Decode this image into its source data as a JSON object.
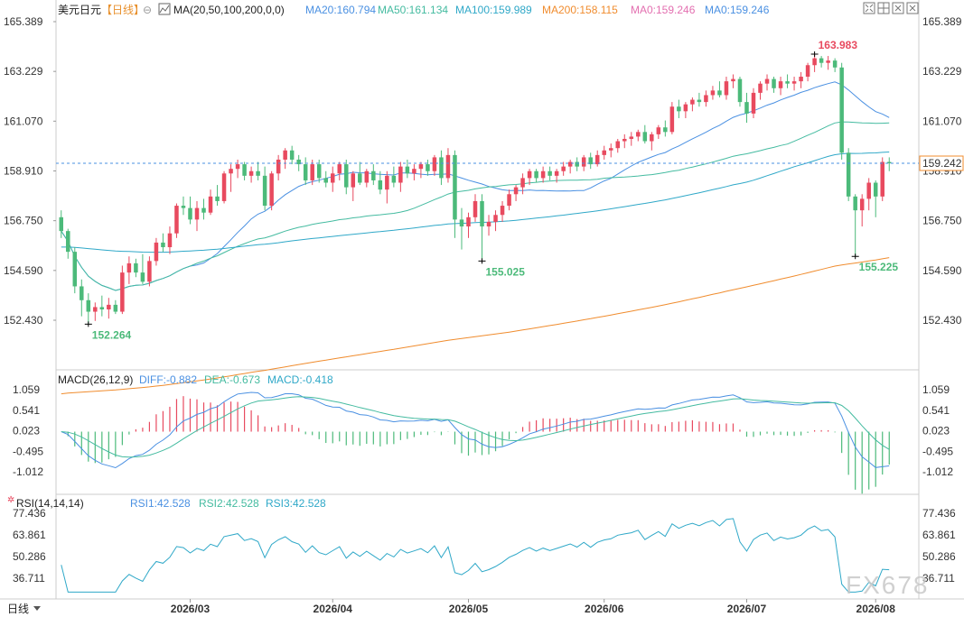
{
  "header": {
    "symbol": "美元日元",
    "period": "【日线】",
    "ma_label": "MA(20,50,100,200,0,0)",
    "ma_values": [
      {
        "text": "MA20:160.794",
        "color": "#4a90e2"
      },
      {
        "text": "MA50:161.134",
        "color": "#44bba0"
      },
      {
        "text": "MA100:159.989",
        "color": "#2fa8c8"
      },
      {
        "text": "MA200:158.115",
        "color": "#f08c2e"
      },
      {
        "text": "MA0:159.246",
        "color": "#e36fb0"
      },
      {
        "text": "MA0:159.246",
        "color": "#4a90e2"
      }
    ]
  },
  "toolbar": [
    "fit-icon",
    "grid-icon",
    "expand-icon",
    "close-icon"
  ],
  "price_axis": {
    "ticks": [
      "165.389",
      "163.229",
      "161.070",
      "158.910",
      "156.750",
      "154.590",
      "152.430"
    ],
    "current": "159.242"
  },
  "annotations": {
    "high": "163.983",
    "low1": "152.264",
    "low2": "155.025",
    "low3": "155.225"
  },
  "macd": {
    "label": "MACD(26,12,9)",
    "diff": "DIFF:-0.882",
    "dea": "DEA:-0.673",
    "macd": "MACD:-0.418",
    "ticks": [
      "1.059",
      "0.541",
      "0.023",
      "-0.495",
      "-1.012"
    ]
  },
  "rsi": {
    "label": "RSI(14,14,14)",
    "rsi1": "RSI1:42.528",
    "rsi2": "RSI2:42.528",
    "rsi3": "RSI3:42.528",
    "ticks": [
      "77.436",
      "63.861",
      "50.286",
      "36.711"
    ]
  },
  "x_axis": {
    "months": [
      "2026/03",
      "2026/04",
      "2026/05",
      "2026/06",
      "2026/07",
      "2026/08"
    ],
    "period_button": "日线"
  },
  "watermark": "FX678",
  "colors": {
    "up": "#e84a5f",
    "down": "#4cba7a",
    "ma20": "#4a90e2",
    "ma50": "#44bba0",
    "ma100": "#2fa8c8",
    "ma200": "#f08c2e",
    "current_price": "#f08c2e"
  },
  "chart_data": {
    "type": "candlestick",
    "price_range": [
      151.4,
      165.8
    ],
    "candles": [
      [
        156.9,
        157.2,
        156.0,
        156.3
      ],
      [
        156.3,
        156.4,
        155.1,
        155.4
      ],
      [
        155.4,
        155.6,
        153.6,
        153.9
      ],
      [
        153.9,
        154.2,
        152.6,
        153.3
      ],
      [
        153.3,
        153.6,
        152.26,
        152.8
      ],
      [
        152.8,
        153.2,
        152.4,
        153.0
      ],
      [
        153.0,
        153.5,
        152.6,
        152.9
      ],
      [
        152.9,
        153.4,
        152.5,
        153.1
      ],
      [
        153.1,
        153.3,
        152.7,
        152.8
      ],
      [
        152.8,
        154.8,
        152.7,
        154.5
      ],
      [
        154.5,
        155.2,
        154.0,
        154.9
      ],
      [
        154.9,
        155.1,
        154.3,
        154.5
      ],
      [
        154.5,
        155.3,
        154.0,
        154.1
      ],
      [
        154.1,
        155.2,
        153.9,
        155.0
      ],
      [
        155.0,
        156.0,
        154.8,
        155.8
      ],
      [
        155.8,
        156.2,
        155.4,
        155.6
      ],
      [
        155.6,
        156.5,
        155.3,
        156.2
      ],
      [
        156.2,
        157.5,
        156.0,
        157.4
      ],
      [
        157.4,
        157.8,
        157.0,
        157.3
      ],
      [
        157.3,
        157.8,
        156.6,
        156.8
      ],
      [
        156.8,
        157.6,
        156.3,
        157.3
      ],
      [
        157.3,
        157.7,
        156.8,
        157.1
      ],
      [
        157.1,
        158.1,
        157.0,
        157.8
      ],
      [
        157.8,
        158.3,
        157.4,
        157.6
      ],
      [
        157.6,
        158.9,
        157.5,
        158.8
      ],
      [
        158.8,
        159.2,
        158.0,
        159.0
      ],
      [
        159.0,
        159.4,
        158.6,
        159.2
      ],
      [
        159.2,
        159.3,
        158.5,
        158.7
      ],
      [
        158.7,
        159.1,
        158.4,
        158.9
      ],
      [
        158.9,
        159.3,
        158.5,
        158.7
      ],
      [
        158.7,
        159.1,
        157.2,
        157.4
      ],
      [
        157.4,
        158.9,
        157.2,
        158.8
      ],
      [
        158.8,
        159.6,
        158.5,
        159.4
      ],
      [
        159.4,
        159.9,
        159.0,
        159.8
      ],
      [
        159.8,
        160.0,
        159.2,
        159.4
      ],
      [
        159.4,
        159.6,
        158.9,
        159.2
      ],
      [
        159.2,
        159.5,
        158.3,
        158.5
      ],
      [
        158.5,
        159.4,
        158.3,
        159.2
      ],
      [
        159.2,
        159.4,
        158.4,
        158.6
      ],
      [
        158.6,
        158.9,
        158.2,
        158.4
      ],
      [
        158.4,
        159.1,
        158.0,
        158.8
      ],
      [
        158.8,
        159.3,
        158.5,
        159.2
      ],
      [
        159.2,
        159.4,
        157.9,
        158.2
      ],
      [
        158.2,
        158.9,
        157.6,
        158.8
      ],
      [
        158.8,
        159.3,
        158.3,
        158.4
      ],
      [
        158.4,
        159.0,
        158.2,
        158.9
      ],
      [
        158.9,
        159.2,
        158.3,
        158.5
      ],
      [
        158.5,
        158.9,
        157.9,
        158.1
      ],
      [
        158.1,
        158.9,
        157.5,
        158.7
      ],
      [
        158.7,
        159.1,
        158.2,
        158.4
      ],
      [
        158.4,
        159.3,
        158.0,
        159.1
      ],
      [
        159.1,
        159.4,
        158.6,
        158.8
      ],
      [
        158.8,
        159.2,
        158.5,
        159.0
      ],
      [
        159.0,
        159.3,
        158.6,
        159.2
      ],
      [
        159.2,
        159.4,
        158.7,
        158.9
      ],
      [
        158.9,
        159.6,
        158.7,
        159.5
      ],
      [
        159.5,
        159.8,
        158.3,
        158.6
      ],
      [
        158.6,
        159.9,
        158.4,
        159.6
      ],
      [
        159.6,
        159.8,
        156.0,
        156.8
      ],
      [
        156.8,
        157.3,
        155.5,
        156.5
      ],
      [
        156.5,
        157.1,
        156.0,
        156.9
      ],
      [
        156.9,
        157.9,
        156.7,
        157.6
      ],
      [
        157.6,
        157.9,
        155.0,
        156.5
      ],
      [
        156.5,
        157.0,
        156.1,
        156.7
      ],
      [
        156.7,
        157.2,
        156.3,
        157.0
      ],
      [
        157.0,
        157.6,
        156.7,
        157.4
      ],
      [
        157.4,
        158.1,
        157.2,
        157.9
      ],
      [
        157.9,
        158.3,
        157.6,
        158.2
      ],
      [
        158.2,
        158.8,
        157.9,
        158.6
      ],
      [
        158.6,
        159.0,
        158.3,
        158.9
      ],
      [
        158.9,
        159.0,
        158.4,
        158.6
      ],
      [
        158.6,
        159.1,
        158.4,
        158.9
      ],
      [
        158.9,
        159.1,
        158.5,
        158.7
      ],
      [
        158.7,
        159.0,
        158.4,
        158.9
      ],
      [
        158.9,
        159.3,
        158.7,
        159.1
      ],
      [
        159.1,
        159.4,
        158.8,
        159.3
      ],
      [
        159.3,
        159.5,
        158.9,
        159.1
      ],
      [
        159.1,
        159.6,
        158.9,
        159.5
      ],
      [
        159.5,
        159.7,
        159.0,
        159.2
      ],
      [
        159.2,
        159.8,
        159.1,
        159.6
      ],
      [
        159.6,
        160.0,
        159.4,
        159.8
      ],
      [
        159.8,
        160.1,
        159.5,
        159.9
      ],
      [
        159.9,
        160.3,
        159.7,
        160.2
      ],
      [
        160.2,
        160.5,
        159.9,
        160.3
      ],
      [
        160.3,
        160.6,
        160.0,
        160.4
      ],
      [
        160.4,
        160.7,
        160.2,
        160.6
      ],
      [
        160.6,
        160.9,
        160.1,
        160.2
      ],
      [
        160.2,
        160.6,
        159.8,
        160.5
      ],
      [
        160.5,
        160.9,
        160.3,
        160.8
      ],
      [
        160.8,
        161.1,
        160.4,
        160.6
      ],
      [
        160.6,
        161.9,
        160.5,
        161.7
      ],
      [
        161.7,
        162.0,
        161.2,
        161.5
      ],
      [
        161.5,
        161.9,
        161.2,
        161.8
      ],
      [
        161.8,
        162.1,
        161.5,
        162.0
      ],
      [
        162.0,
        162.3,
        161.7,
        161.9
      ],
      [
        161.9,
        162.4,
        161.7,
        162.2
      ],
      [
        162.2,
        162.6,
        162.0,
        162.4
      ],
      [
        162.4,
        162.8,
        162.1,
        162.2
      ],
      [
        162.2,
        163.0,
        162.0,
        162.8
      ],
      [
        162.8,
        163.1,
        162.5,
        162.9
      ],
      [
        162.9,
        163.0,
        161.7,
        161.9
      ],
      [
        161.9,
        162.3,
        161.0,
        161.4
      ],
      [
        161.4,
        162.5,
        161.2,
        162.3
      ],
      [
        162.3,
        162.8,
        162.0,
        162.7
      ],
      [
        162.7,
        163.1,
        162.4,
        162.9
      ],
      [
        162.9,
        163.0,
        162.3,
        162.5
      ],
      [
        162.5,
        163.0,
        162.2,
        162.8
      ],
      [
        162.8,
        163.1,
        162.5,
        162.7
      ],
      [
        162.7,
        163.0,
        162.4,
        162.8
      ],
      [
        162.8,
        163.2,
        162.5,
        163.0
      ],
      [
        163.0,
        163.6,
        162.8,
        163.5
      ],
      [
        163.5,
        163.98,
        163.2,
        163.8
      ],
      [
        163.8,
        163.9,
        163.4,
        163.6
      ],
      [
        163.6,
        163.9,
        163.3,
        163.7
      ],
      [
        163.7,
        163.8,
        163.2,
        163.4
      ],
      [
        163.4,
        163.6,
        159.4,
        159.7
      ],
      [
        159.7,
        159.9,
        157.6,
        157.8
      ],
      [
        157.8,
        157.9,
        155.2,
        157.2
      ],
      [
        157.2,
        157.9,
        156.5,
        157.7
      ],
      [
        157.7,
        158.6,
        157.2,
        158.4
      ],
      [
        158.4,
        158.5,
        156.9,
        157.8
      ],
      [
        157.8,
        159.5,
        157.6,
        159.3
      ],
      [
        159.3,
        159.5,
        158.9,
        159.24
      ]
    ]
  }
}
